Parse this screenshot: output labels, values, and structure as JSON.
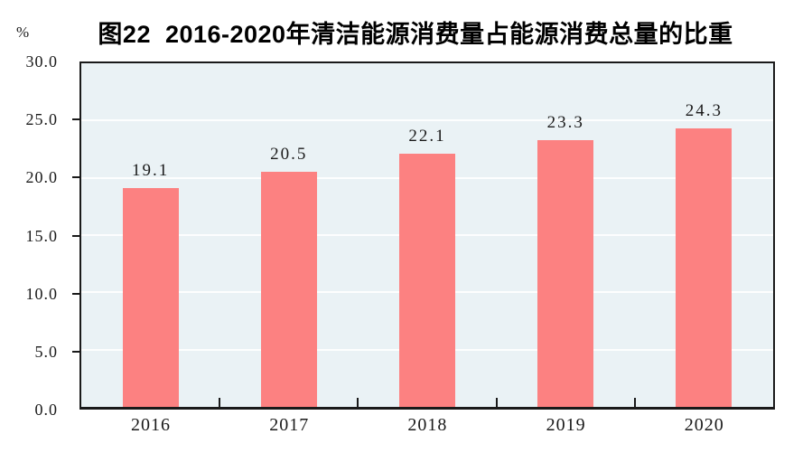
{
  "chart_data": {
    "type": "bar",
    "title": "图22  2016-2020年清洁能源消费量占能源消费总量的比重",
    "categories": [
      "2016",
      "2017",
      "2018",
      "2019",
      "2020"
    ],
    "values": [
      19.1,
      20.5,
      22.1,
      23.3,
      24.3
    ],
    "value_labels": [
      "19.1",
      "20.5",
      "22.1",
      "23.3",
      "24.3"
    ],
    "xlabel": "",
    "ylabel": "%",
    "ylim": [
      0,
      30
    ],
    "ytick_interval": 5,
    "ytick_labels": [
      "0.0",
      "5.0",
      "10.0",
      "15.0",
      "20.0",
      "25.0",
      "30.0"
    ],
    "grid": true,
    "legend": false,
    "colors": {
      "bar_fill": "#FC8181",
      "plot_background": "#EAF2F5",
      "gridline": "#FFFFFF",
      "axis": "#1A1A1A",
      "text": "#1A1A1A"
    }
  }
}
